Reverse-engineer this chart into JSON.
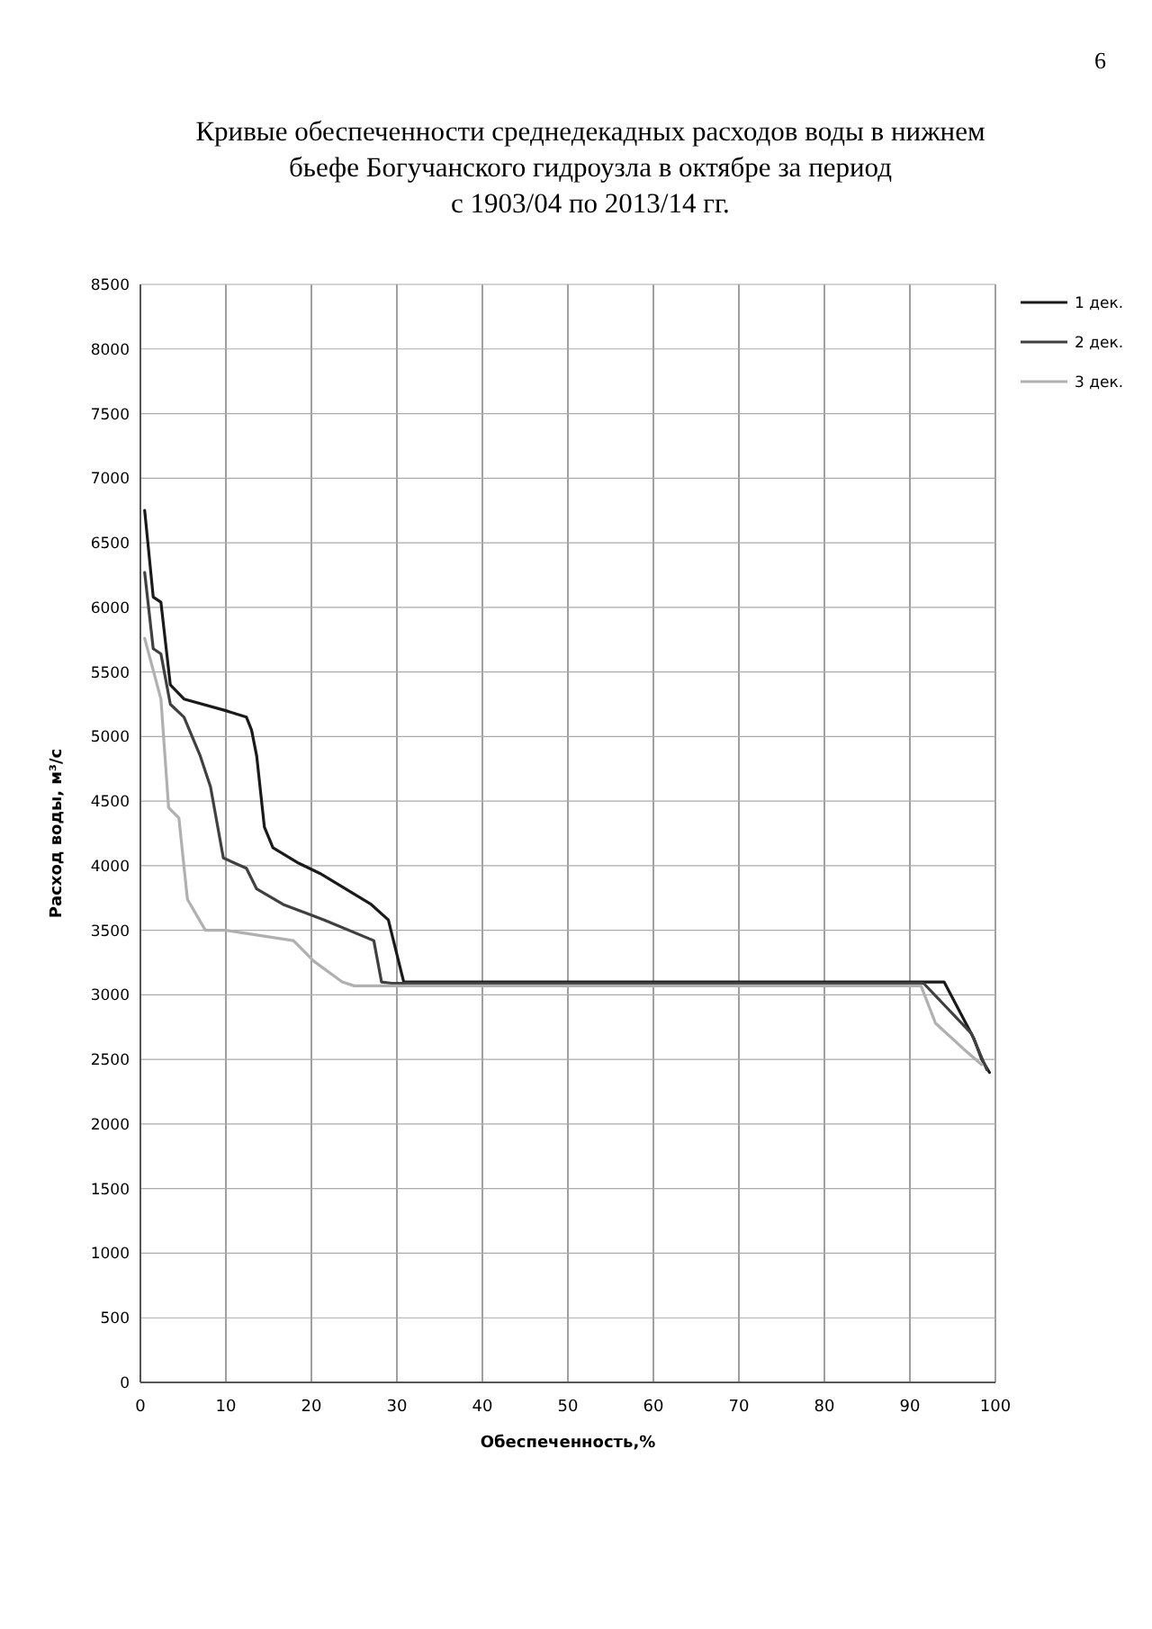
{
  "chart_data": {
    "type": "line",
    "title": "Кривые обеспеченности среднедекадных расходов воды в нижнем бьефе Богучанского гидроузла в октябре за период\nс 1903/04 по 2013/14 гг.",
    "xlabel": "Обеспеченность,%",
    "ylabel": "Расход воды, м³/с",
    "series": [
      {
        "name": "1 дек.",
        "color": "#1a1a1a",
        "x": [
          0.5,
          1.5,
          2.4,
          3.5,
          5.1,
          10,
          12.4,
          13,
          13.6,
          14.5,
          15.5,
          18.5,
          21,
          24,
          27,
          29,
          30.8,
          94,
          97.5,
          98.4,
          99.3
        ],
        "values": [
          6750,
          6080,
          6040,
          5400,
          5290,
          5200,
          5150,
          5050,
          4850,
          4300,
          4140,
          4020,
          3940,
          3820,
          3700,
          3580,
          3100,
          3100,
          2660,
          2500,
          2400
        ]
      },
      {
        "name": "2 дек.",
        "color": "#404040",
        "x": [
          0.5,
          1.5,
          2.4,
          3.5,
          5.1,
          7,
          8.2,
          9.7,
          12.4,
          13.6,
          16.7,
          21.5,
          27.3,
          28.2,
          29.4,
          91.6,
          97.2,
          99
        ],
        "values": [
          6270,
          5680,
          5640,
          5250,
          5150,
          4850,
          4610,
          4060,
          3980,
          3820,
          3700,
          3580,
          3420,
          3100,
          3090,
          3090,
          2700,
          2420
        ]
      },
      {
        "name": "3 дек.",
        "color": "#b0b0b0",
        "x": [
          0.5,
          2.4,
          3.3,
          4.5,
          5.5,
          7.6,
          10,
          17.9,
          20.3,
          23.6,
          25,
          91.3,
          93,
          96.3,
          98.4
        ],
        "values": [
          5760,
          5290,
          4450,
          4370,
          3740,
          3500,
          3500,
          3420,
          3260,
          3100,
          3070,
          3070,
          2780,
          2580,
          2460
        ]
      }
    ],
    "xlim": [
      0,
      100
    ],
    "xticks": [
      0,
      10,
      20,
      30,
      40,
      50,
      60,
      70,
      80,
      90,
      100
    ],
    "ylim": [
      0,
      8500
    ],
    "yticks": [
      0,
      500,
      1000,
      1500,
      2000,
      2500,
      3000,
      3500,
      4000,
      4500,
      5000,
      5500,
      6000,
      6500,
      7000,
      7500,
      8000,
      8500
    ],
    "grid": true,
    "legend": "right",
    "line_style": "solid",
    "marker": "none",
    "annotations": [
      "6"
    ]
  }
}
